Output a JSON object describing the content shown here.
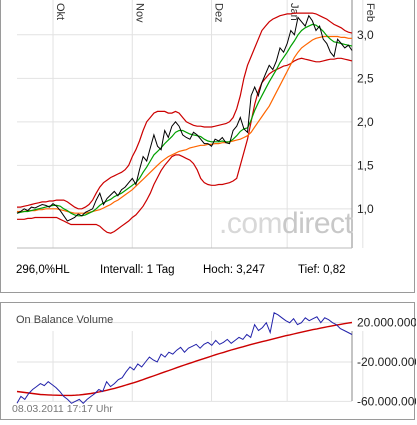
{
  "stats": {
    "percent": "296,0%HL",
    "interval": "Intervall: 1 Tag",
    "high": "Hoch:  3,247",
    "low": "Tief:  0,82"
  },
  "watermark": ".comdirect",
  "obv": {
    "title": "On Balance Volume",
    "timestamp": "08.03.2011 17:17 Uhr"
  },
  "colors": {
    "price": "#000000",
    "ma_green": "#00a000",
    "ma_orange": "#ff6600",
    "bollinger": "#cc0000",
    "obv_line": "#2222aa",
    "obv_ma": "#cc0000",
    "grid": "#e2e2e2"
  },
  "chart_data": [
    {
      "type": "line",
      "x_ticks": [
        "Okt",
        "Nov",
        "Dez",
        "Jan",
        "Feb"
      ],
      "x_tick_index": [
        10,
        32,
        54,
        75,
        96
      ],
      "ylim": [
        0.55,
        3.4
      ],
      "y_ticks": [
        1.0,
        1.5,
        2.0,
        2.5,
        3.0
      ],
      "y_tick_labels": [
        "1,0",
        "1,5",
        "2,0",
        "2,5",
        "3,0"
      ],
      "grid": true,
      "series": [
        {
          "role": "price",
          "values": [
            0.95,
            0.97,
            1.0,
            0.98,
            1.02,
            1.01,
            1.03,
            1.05,
            1.04,
            1.02,
            1.06,
            1.03,
            0.98,
            0.92,
            0.86,
            0.88,
            0.9,
            0.94,
            0.92,
            0.96,
            0.98,
            1.0,
            1.1,
            1.18,
            1.05,
            1.12,
            1.16,
            1.2,
            1.15,
            1.22,
            1.25,
            1.3,
            1.35,
            1.28,
            1.45,
            1.6,
            1.55,
            1.7,
            1.85,
            1.72,
            1.68,
            1.9,
            1.82,
            1.95,
            2.0,
            1.95,
            1.85,
            1.82,
            1.8,
            1.88,
            1.85,
            1.8,
            1.75,
            1.75,
            1.72,
            1.8,
            1.78,
            1.82,
            1.76,
            1.75,
            1.9,
            1.95,
            2.05,
            1.92,
            1.88,
            2.3,
            2.4,
            2.3,
            2.45,
            2.55,
            2.65,
            2.6,
            2.7,
            2.85,
            2.8,
            2.9,
            3.05,
            3.0,
            3.2,
            3.15,
            3.1,
            3.22,
            3.16,
            3.05,
            3.1,
            2.95,
            2.9,
            2.8,
            2.75,
            2.95,
            2.9,
            2.85,
            2.88,
            2.82
          ]
        },
        {
          "role": "ma_short",
          "values": [
            0.95,
            0.96,
            0.97,
            0.97,
            0.98,
            0.99,
            1.0,
            1.01,
            1.02,
            1.03,
            1.04,
            1.04,
            1.03,
            1.0,
            0.98,
            0.95,
            0.93,
            0.92,
            0.92,
            0.93,
            0.95,
            0.97,
            1.0,
            1.04,
            1.07,
            1.09,
            1.11,
            1.14,
            1.16,
            1.18,
            1.21,
            1.24,
            1.27,
            1.3,
            1.35,
            1.42,
            1.48,
            1.55,
            1.62,
            1.66,
            1.7,
            1.75,
            1.79,
            1.83,
            1.88,
            1.9,
            1.9,
            1.88,
            1.86,
            1.85,
            1.84,
            1.83,
            1.8,
            1.78,
            1.77,
            1.77,
            1.77,
            1.78,
            1.77,
            1.77,
            1.8,
            1.84,
            1.89,
            1.92,
            1.93,
            2.02,
            2.13,
            2.22,
            2.3,
            2.38,
            2.46,
            2.53,
            2.6,
            2.68,
            2.74,
            2.8,
            2.87,
            2.93,
            3.0,
            3.05,
            3.08,
            3.1,
            3.12,
            3.11,
            3.08,
            3.04,
            2.99,
            2.95,
            2.92,
            2.91,
            2.9,
            2.89,
            2.88,
            2.87
          ]
        },
        {
          "role": "ma_long",
          "values": [
            0.97,
            0.97,
            0.97,
            0.98,
            0.98,
            0.98,
            0.99,
            0.99,
            1.0,
            1.0,
            1.0,
            1.0,
            0.99,
            0.98,
            0.97,
            0.96,
            0.95,
            0.95,
            0.95,
            0.95,
            0.96,
            0.97,
            0.98,
            0.99,
            1.01,
            1.03,
            1.05,
            1.08,
            1.1,
            1.13,
            1.16,
            1.19,
            1.22,
            1.26,
            1.3,
            1.34,
            1.38,
            1.42,
            1.46,
            1.5,
            1.54,
            1.57,
            1.6,
            1.62,
            1.64,
            1.66,
            1.67,
            1.68,
            1.7,
            1.71,
            1.72,
            1.73,
            1.73,
            1.74,
            1.74,
            1.75,
            1.75,
            1.76,
            1.76,
            1.77,
            1.78,
            1.79,
            1.8,
            1.82,
            1.84,
            1.88,
            1.94,
            2.0,
            2.06,
            2.12,
            2.18,
            2.26,
            2.34,
            2.42,
            2.5,
            2.58,
            2.66,
            2.74,
            2.8,
            2.85,
            2.88,
            2.91,
            2.94,
            2.96,
            2.97,
            2.98,
            2.98,
            2.98,
            2.98,
            2.98,
            2.97,
            2.97,
            2.96,
            2.96
          ]
        },
        {
          "role": "band_upper",
          "values": [
            1.02,
            1.02,
            1.03,
            1.04,
            1.05,
            1.06,
            1.07,
            1.08,
            1.08,
            1.09,
            1.09,
            1.1,
            1.1,
            1.1,
            1.08,
            1.05,
            1.02,
            1.0,
            1.0,
            1.02,
            1.05,
            1.1,
            1.18,
            1.25,
            1.3,
            1.33,
            1.36,
            1.38,
            1.4,
            1.42,
            1.45,
            1.5,
            1.6,
            1.68,
            1.78,
            1.9,
            2.0,
            2.05,
            2.1,
            2.12,
            2.12,
            2.12,
            2.1,
            2.1,
            2.12,
            2.1,
            2.05,
            2.0,
            1.98,
            1.96,
            1.95,
            1.95,
            1.94,
            1.94,
            1.94,
            1.95,
            1.96,
            1.97,
            1.98,
            2.0,
            2.05,
            2.15,
            2.3,
            2.5,
            2.65,
            2.75,
            2.85,
            2.95,
            3.05,
            3.1,
            3.15,
            3.18,
            3.2,
            3.22,
            3.23,
            3.24,
            3.24,
            3.25,
            3.25,
            3.25,
            3.25,
            3.25,
            3.25,
            3.24,
            3.22,
            3.2,
            3.18,
            3.15,
            3.12,
            3.1,
            3.08,
            3.05,
            3.03,
            3.02
          ]
        },
        {
          "role": "band_lower",
          "values": [
            0.88,
            0.88,
            0.88,
            0.89,
            0.89,
            0.9,
            0.9,
            0.9,
            0.9,
            0.9,
            0.9,
            0.9,
            0.88,
            0.86,
            0.84,
            0.82,
            0.82,
            0.82,
            0.82,
            0.82,
            0.82,
            0.82,
            0.82,
            0.8,
            0.76,
            0.73,
            0.72,
            0.74,
            0.77,
            0.8,
            0.83,
            0.86,
            0.9,
            0.93,
            0.98,
            1.03,
            1.1,
            1.18,
            1.28,
            1.36,
            1.44,
            1.5,
            1.55,
            1.6,
            1.62,
            1.62,
            1.6,
            1.58,
            1.56,
            1.52,
            1.45,
            1.35,
            1.3,
            1.28,
            1.27,
            1.27,
            1.28,
            1.28,
            1.29,
            1.3,
            1.32,
            1.35,
            1.5,
            1.65,
            1.8,
            2.0,
            2.2,
            2.35,
            2.45,
            2.5,
            2.55,
            2.58,
            2.6,
            2.62,
            2.64,
            2.65,
            2.67,
            2.7,
            2.72,
            2.73,
            2.72,
            2.71,
            2.7,
            2.69,
            2.69,
            2.7,
            2.71,
            2.72,
            2.72,
            2.73,
            2.73,
            2.72,
            2.71,
            2.7
          ]
        }
      ]
    },
    {
      "type": "line",
      "title": "On Balance Volume",
      "ylim": [
        -80000000,
        40000000
      ],
      "y_ticks": [
        20000000,
        -20000000,
        -60000000
      ],
      "y_tick_labels": [
        "20.000.000",
        "-20.000.000",
        "-60.000.000"
      ],
      "grid": true,
      "series": [
        {
          "role": "obv",
          "values": [
            -62000000,
            -55000000,
            -58000000,
            -52000000,
            -48000000,
            -45000000,
            -42000000,
            -44000000,
            -40000000,
            -43000000,
            -46000000,
            -50000000,
            -55000000,
            -58000000,
            -62000000,
            -60000000,
            -58000000,
            -62000000,
            -58000000,
            -55000000,
            -52000000,
            -48000000,
            -50000000,
            -40000000,
            -45000000,
            -42000000,
            -38000000,
            -36000000,
            -30000000,
            -25000000,
            -28000000,
            -22000000,
            -25000000,
            -20000000,
            -15000000,
            -18000000,
            -20000000,
            -12000000,
            -15000000,
            -10000000,
            -12000000,
            -8000000,
            -5000000,
            -10000000,
            -6000000,
            -4000000,
            -2000000,
            -6000000,
            -2000000,
            0,
            -3000000,
            2000000,
            -2000000,
            0,
            3000000,
            -1000000,
            2000000,
            5000000,
            3000000,
            8000000,
            5000000,
            18000000,
            12000000,
            15000000,
            20000000,
            10000000,
            30000000,
            28000000,
            25000000,
            22000000,
            20000000,
            24000000,
            18000000,
            20000000,
            25000000,
            22000000,
            24000000,
            26000000,
            20000000,
            25000000,
            23000000,
            20000000,
            18000000,
            14000000,
            12000000,
            10000000,
            8000000
          ],
          "name": ""
        },
        {
          "role": "obv_ma",
          "values": [
            -50000000,
            -50500000,
            -51000000,
            -51500000,
            -52000000,
            -52500000,
            -53000000,
            -53300000,
            -53500000,
            -53700000,
            -53800000,
            -53900000,
            -54000000,
            -54000000,
            -54000000,
            -53800000,
            -53500000,
            -53000000,
            -52500000,
            -52000000,
            -51300000,
            -50500000,
            -49700000,
            -48800000,
            -47800000,
            -46800000,
            -45700000,
            -44600000,
            -43400000,
            -42200000,
            -41000000,
            -39700000,
            -38400000,
            -37000000,
            -35600000,
            -34200000,
            -32800000,
            -31400000,
            -30000000,
            -28600000,
            -27200000,
            -25800000,
            -24400000,
            -23000000,
            -21700000,
            -20400000,
            -19100000,
            -17800000,
            -16500000,
            -15200000,
            -13900000,
            -12600000,
            -11400000,
            -10200000,
            -9000000,
            -7800000,
            -6700000,
            -5600000,
            -4500000,
            -3400000,
            -2300000,
            -1300000,
            -300000,
            700000,
            1700000,
            2700000,
            3700000,
            4700000,
            5700000,
            6700000,
            7600000,
            8500000,
            9400000,
            10300000,
            11200000,
            12100000,
            12900000,
            13700000,
            14500000,
            15300000,
            16100000,
            16800000,
            17500000,
            18200000,
            18900000,
            19600000,
            20200000
          ]
        }
      ]
    }
  ]
}
